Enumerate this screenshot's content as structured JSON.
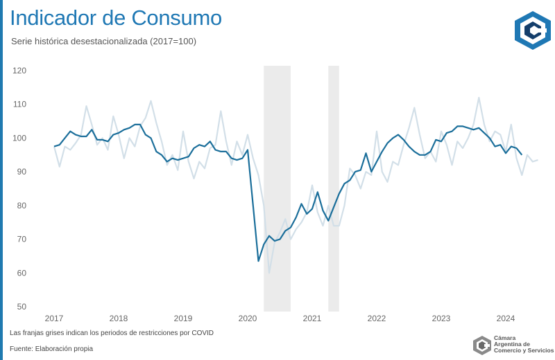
{
  "header": {
    "title": "Indicador de Consumo",
    "subtitle": "Serie histórica desestacionalizada (2017=100)"
  },
  "footer": {
    "note": "Las franjas grises indican los periodos de restricciones por COVID",
    "source": "Fuente: Elaboración propia",
    "org_line1": "Cámara",
    "org_line2": "Argentina de",
    "org_line3": "Comercio y Servicios"
  },
  "colors": {
    "accent": "#1f78b4",
    "series_main": "#1a6e9a",
    "series_raw": "#d2dfe8",
    "covid_band": "#ebebeb"
  },
  "chart_data": {
    "type": "line",
    "title": "Indicador de Consumo",
    "subtitle": "Serie histórica desestacionalizada (2017=100)",
    "ylim": [
      50,
      120
    ],
    "yticks": [
      50,
      60,
      70,
      80,
      90,
      100,
      110,
      120
    ],
    "year_labels": [
      2017,
      2018,
      2019,
      2020,
      2021,
      2022,
      2023,
      2024
    ],
    "x_start": "2017-01",
    "grid": false,
    "legend": "none",
    "shaded_periods": [
      {
        "start": "2020-04",
        "end": "2020-09"
      },
      {
        "start": "2021-04",
        "end": "2021-06"
      }
    ],
    "series": [
      {
        "values": [
          97.5,
          91.5,
          97.5,
          96.5,
          98.5,
          101,
          109.5,
          104,
          98,
          100,
          96.5,
          106.5,
          101,
          94,
          100,
          97.5,
          103.5,
          106,
          111,
          104.5,
          99,
          92,
          95,
          90.5,
          102,
          93,
          88,
          93,
          91,
          97,
          98,
          108,
          99,
          92,
          99,
          95,
          101,
          94,
          89,
          80,
          60,
          69,
          72,
          76,
          70,
          73,
          75,
          78,
          86,
          78,
          74,
          80,
          74,
          74,
          80,
          91,
          89,
          85,
          90,
          89,
          102,
          90,
          87,
          93,
          92,
          98,
          103,
          109,
          101,
          94,
          96,
          93,
          102,
          98,
          92,
          99,
          97,
          100,
          104,
          112,
          104,
          99,
          102,
          101,
          96,
          104,
          94,
          89,
          95,
          93,
          93.5
        ]
      },
      {
        "values": [
          97.5,
          98,
          100,
          102,
          101,
          100.5,
          100.5,
          102.5,
          99.5,
          99.5,
          99,
          101,
          101.5,
          102.5,
          103,
          104,
          104,
          101,
          100,
          96,
          95,
          93,
          94,
          93.5,
          94,
          94.5,
          97,
          98,
          97.5,
          99,
          96.5,
          96,
          96,
          94,
          93.5,
          94,
          96.5,
          80,
          63.5,
          68.5,
          71,
          69.5,
          70,
          72.5,
          73.5,
          76.5,
          80.5,
          77.5,
          79,
          84,
          78.5,
          75.5,
          79.5,
          83.5,
          86.5,
          87.5,
          90,
          90.5,
          95.5,
          90,
          93,
          96,
          98.5,
          100,
          101,
          99.5,
          97.5,
          96,
          95,
          95,
          96,
          99.5,
          99,
          101.5,
          102,
          103.5,
          103.5,
          103,
          102.5,
          103,
          101.5,
          100,
          97.5,
          98,
          95.5,
          97.5,
          97,
          95
        ]
      }
    ]
  }
}
